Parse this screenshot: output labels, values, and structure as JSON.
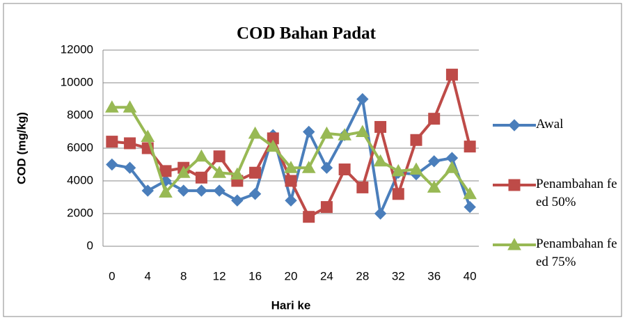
{
  "chart_data": {
    "type": "line",
    "title": "COD Bahan Padat",
    "x_label": "Hari ke",
    "y_label": "COD (mg/kg)",
    "x": [
      0,
      2,
      4,
      6,
      8,
      10,
      12,
      14,
      16,
      18,
      20,
      22,
      24,
      26,
      28,
      30,
      32,
      34,
      36,
      38,
      40
    ],
    "series": [
      {
        "name": "Awal",
        "color": "#4a7ebb",
        "marker": "diamond",
        "values": [
          5000,
          4800,
          3400,
          4000,
          3400,
          3400,
          3400,
          2800,
          3200,
          6800,
          2800,
          7000,
          4800,
          6800,
          9000,
          2000,
          4500,
          4400,
          5200,
          5400,
          2400
        ]
      },
      {
        "name": "Penambahan feed 50%",
        "color": "#be4b48",
        "marker": "square",
        "values": [
          6400,
          6300,
          6000,
          4600,
          4800,
          4200,
          5500,
          4000,
          4500,
          6600,
          4000,
          1800,
          2400,
          4700,
          3600,
          7300,
          3200,
          6500,
          7800,
          10500,
          6100
        ]
      },
      {
        "name": "Penambahan feed 75%",
        "color": "#98b954",
        "marker": "triangle",
        "values": [
          8500,
          8500,
          6700,
          3300,
          4500,
          5500,
          4500,
          4400,
          6900,
          6100,
          4800,
          4800,
          6900,
          6800,
          7000,
          5200,
          4600,
          4700,
          3600,
          4800,
          3200
        ]
      }
    ],
    "xlim": [
      -1,
      41
    ],
    "xticks": [
      0,
      4,
      8,
      12,
      16,
      20,
      24,
      28,
      32,
      36,
      40
    ],
    "ylim": [
      0,
      12000
    ],
    "yticks": [
      0,
      2000,
      4000,
      6000,
      8000,
      10000,
      12000
    ],
    "grid": true,
    "legend": "right"
  }
}
